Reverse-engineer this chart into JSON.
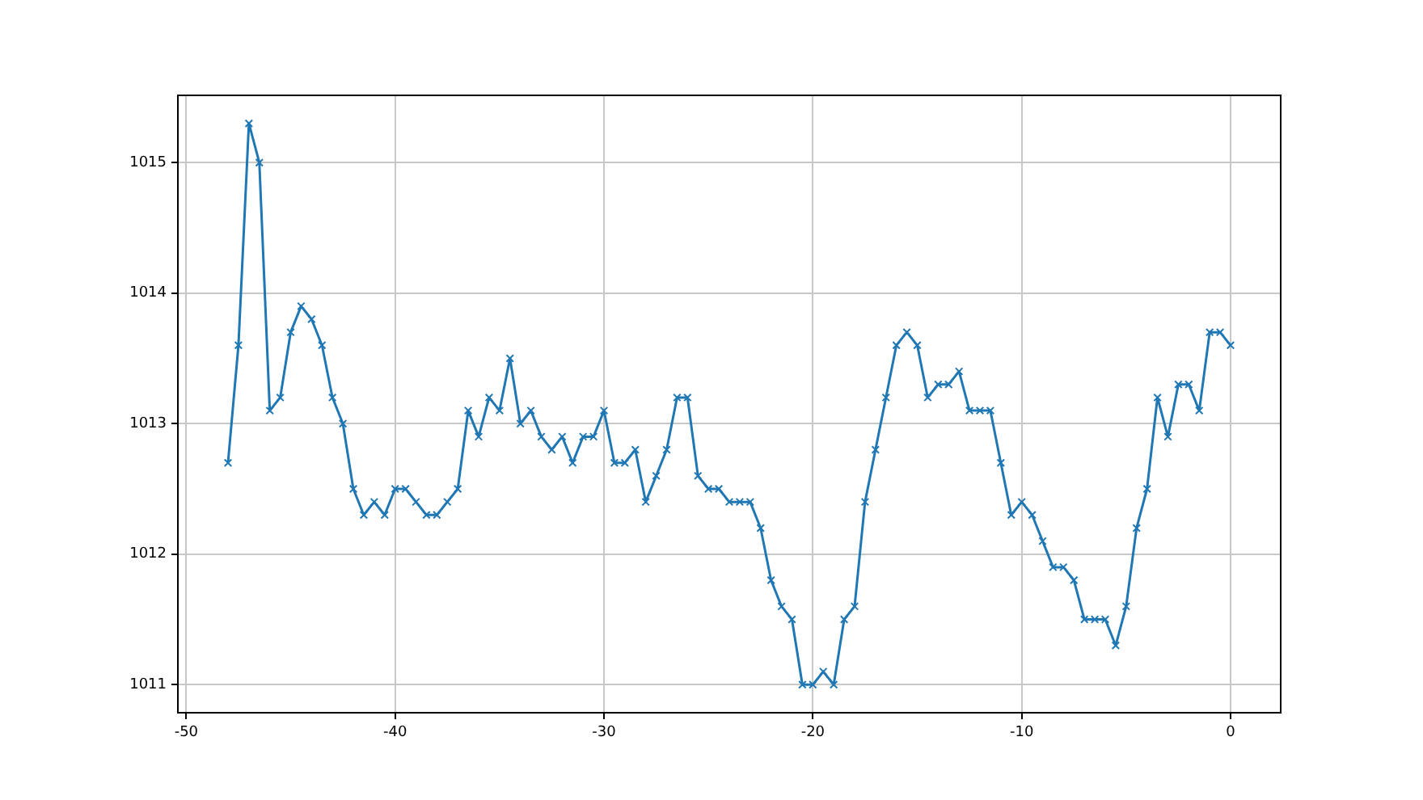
{
  "chart_data": {
    "type": "line",
    "x": [
      -48,
      -47.5,
      -47,
      -46.5,
      -46,
      -45.5,
      -45,
      -44.5,
      -44,
      -43.5,
      -43,
      -42.5,
      -42,
      -41.5,
      -41,
      -40.5,
      -40,
      -39.5,
      -39,
      -38.5,
      -38,
      -37.5,
      -37,
      -36.5,
      -36,
      -35.5,
      -35,
      -34.5,
      -34,
      -33.5,
      -33,
      -32.5,
      -32,
      -31.5,
      -31,
      -30.5,
      -30,
      -29.5,
      -29,
      -28.5,
      -28,
      -27.5,
      -27,
      -26.5,
      -26,
      -25.5,
      -25,
      -24.5,
      -24,
      -23.5,
      -23,
      -22.5,
      -22,
      -21.5,
      -21,
      -20.5,
      -20,
      -19.5,
      -19,
      -18.5,
      -18,
      -17.5,
      -17,
      -16.5,
      -16,
      -15.5,
      -15,
      -14.5,
      -14,
      -13.5,
      -13,
      -12.5,
      -12,
      -11.5,
      -11,
      -10.5,
      -10,
      -9.5,
      -9,
      -8.5,
      -8,
      -7.5,
      -7,
      -6.5,
      -6,
      -5.5,
      -5,
      -4.5,
      -4,
      -3.5,
      -3,
      -2.5,
      -2,
      -1.5,
      -1,
      -0.5,
      0
    ],
    "series": [
      {
        "color": "#1f77b4",
        "values": [
          1012.7,
          1013.6,
          1015.3,
          1015.0,
          1013.1,
          1013.2,
          1013.7,
          1013.9,
          1013.8,
          1013.6,
          1013.2,
          1013.0,
          1012.5,
          1012.3,
          1012.4,
          1012.3,
          1012.5,
          1012.5,
          1012.4,
          1012.3,
          1012.3,
          1012.4,
          1012.5,
          1013.1,
          1012.9,
          1013.2,
          1013.1,
          1013.5,
          1013.0,
          1013.1,
          1012.9,
          1012.8,
          1012.9,
          1012.7,
          1012.9,
          1012.9,
          1013.1,
          1012.7,
          1012.7,
          1012.8,
          1012.4,
          1012.6,
          1012.8,
          1013.2,
          1013.2,
          1012.6,
          1012.5,
          1012.5,
          1012.4,
          1012.4,
          1012.4,
          1012.2,
          1011.8,
          1011.6,
          1011.5,
          1011.0,
          1011.0,
          1011.1,
          1011.0,
          1011.5,
          1011.6,
          1012.4,
          1012.8,
          1013.2,
          1013.6,
          1013.7,
          1013.6,
          1013.2,
          1013.3,
          1013.3,
          1013.4,
          1013.1,
          1013.1,
          1013.1,
          1012.7,
          1012.3,
          1012.4,
          1012.3,
          1012.1,
          1011.9,
          1011.9,
          1011.8,
          1011.5,
          1011.5,
          1011.5,
          1011.3,
          1011.6,
          1012.2,
          1012.5,
          1013.2,
          1012.9,
          1013.3,
          1013.3,
          1013.1,
          1013.7,
          1013.7,
          1013.6
        ]
      }
    ],
    "xlim": [
      -50.4,
      2.4
    ],
    "xticks": [
      -50,
      -40,
      -30,
      -20,
      -10,
      0
    ],
    "ylim": [
      1010.785,
      1015.515
    ],
    "yticks": [
      1011,
      1012,
      1013,
      1014,
      1015
    ],
    "grid": true,
    "marker": "cross",
    "line_style": "solid"
  }
}
